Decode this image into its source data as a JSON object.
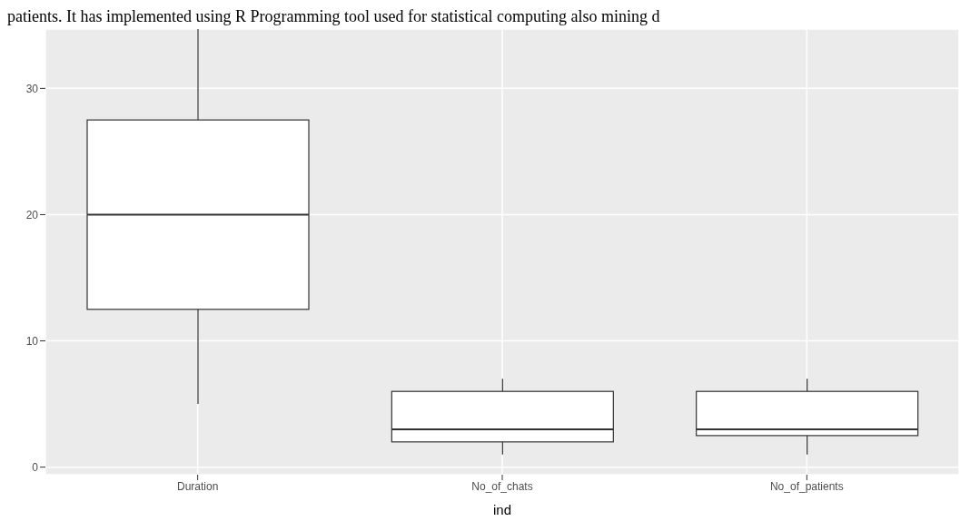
{
  "chart_data": {
    "type": "box",
    "xlabel": "ind",
    "categories": [
      "Duration",
      "No_of_chats",
      "No_of_patients"
    ],
    "boxes": [
      {
        "low": 5,
        "q1": 12.5,
        "median": 20,
        "q3": 27.5,
        "high": 34.7
      },
      {
        "low": 1,
        "q1": 2,
        "median": 3,
        "q3": 6,
        "high": 7
      },
      {
        "low": 1,
        "q1": 2.5,
        "median": 3,
        "q3": 6,
        "high": 7
      }
    ],
    "ylim": [
      -0.6,
      34.7
    ],
    "yticks": [
      0,
      10,
      20,
      30
    ],
    "grid": true,
    "annotations": [
      "patients. It has implemented using R Programming tool used for statistical computing also mining d"
    ]
  }
}
